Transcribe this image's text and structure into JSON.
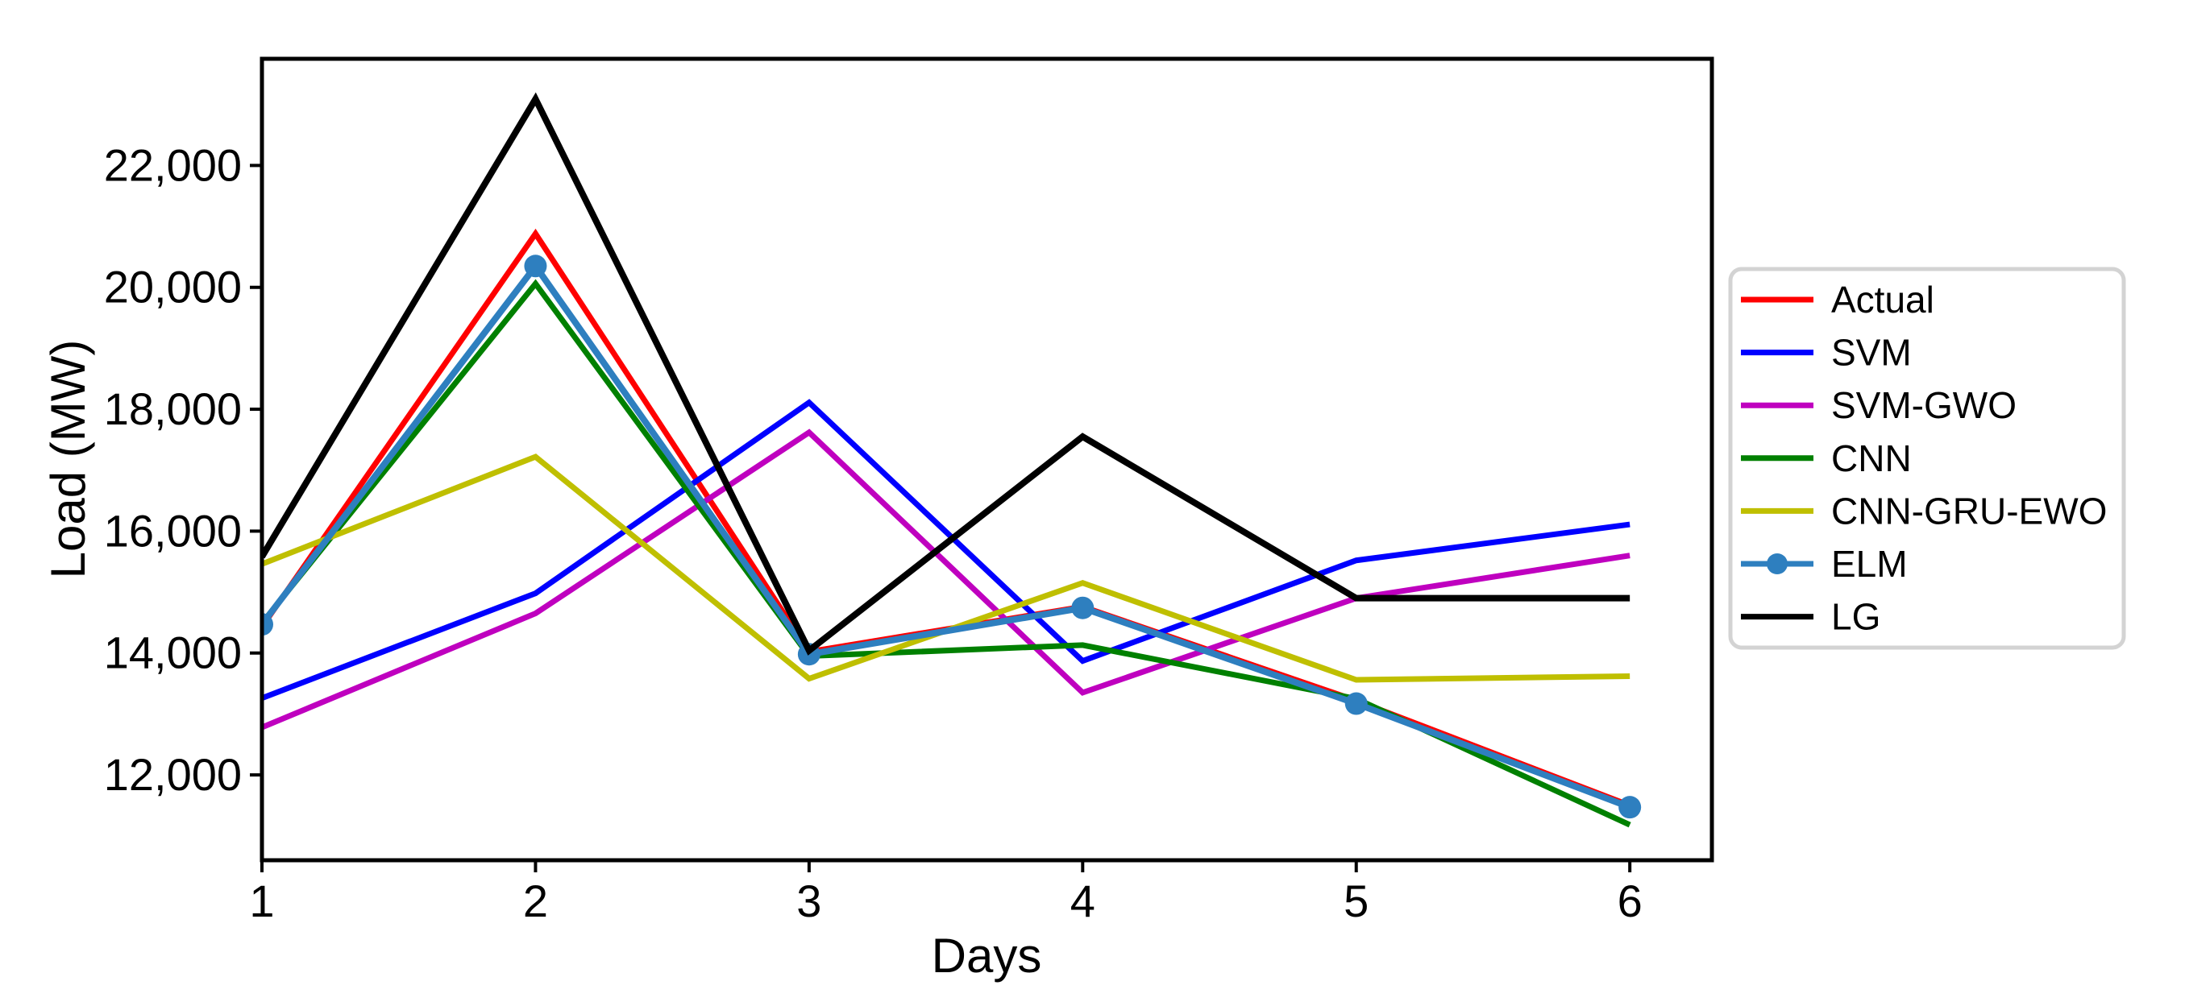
{
  "figure": {
    "background": "#ffffff"
  },
  "chart_data": {
    "type": "line",
    "title": "",
    "xlabel": "Days",
    "ylabel": "Load (MW)",
    "x": [
      1,
      2,
      3,
      4,
      5,
      6
    ],
    "xlim": [
      1,
      6.3
    ],
    "ylim": [
      10600,
      23750
    ],
    "grid": false,
    "legend_position": "outside-right",
    "axis_color": "#000000",
    "legend_border_color": "#d3d3d3",
    "x_ticks": [
      {
        "v": 1,
        "label": "1"
      },
      {
        "v": 2,
        "label": "2"
      },
      {
        "v": 3,
        "label": "3"
      },
      {
        "v": 4,
        "label": "4"
      },
      {
        "v": 5,
        "label": "5"
      },
      {
        "v": 6,
        "label": "6"
      }
    ],
    "y_ticks": [
      {
        "v": 12000,
        "label": "12,000"
      },
      {
        "v": 14000,
        "label": "14,000"
      },
      {
        "v": 16000,
        "label": "16,000"
      },
      {
        "v": 18000,
        "label": "18,000"
      },
      {
        "v": 20000,
        "label": "20,000"
      },
      {
        "v": 22000,
        "label": "22,000"
      }
    ],
    "series": [
      {
        "name": "Actual",
        "color": "#ff0000",
        "marker": "none",
        "line_width": 7,
        "values": [
          14430,
          20880,
          14020,
          14760,
          13220,
          11500
        ]
      },
      {
        "name": "SVM",
        "color": "#0000ff",
        "marker": "none",
        "line_width": 7,
        "values": [
          13260,
          14980,
          18110,
          13870,
          15520,
          16110
        ]
      },
      {
        "name": "SVM-GWO",
        "color": "#bf00bf",
        "marker": "none",
        "line_width": 7,
        "values": [
          12780,
          14650,
          17620,
          13350,
          14900,
          15600
        ]
      },
      {
        "name": "CNN",
        "color": "#008000",
        "marker": "none",
        "line_width": 7,
        "values": [
          14490,
          20060,
          13950,
          14130,
          13250,
          11180
        ]
      },
      {
        "name": "CNN-GRU-EWO",
        "color": "#bfbf00",
        "marker": "none",
        "line_width": 7,
        "values": [
          15460,
          17220,
          13580,
          15150,
          13560,
          13620
        ]
      },
      {
        "name": "ELM",
        "color": "#2e7fbf",
        "marker": "circle",
        "line_width": 8,
        "values": [
          14470,
          20350,
          13980,
          14740,
          13170,
          11470
        ]
      },
      {
        "name": "LG",
        "color": "#000000",
        "marker": "none",
        "line_width": 8,
        "values": [
          15580,
          23090,
          14040,
          17550,
          14900,
          14900
        ]
      }
    ]
  }
}
